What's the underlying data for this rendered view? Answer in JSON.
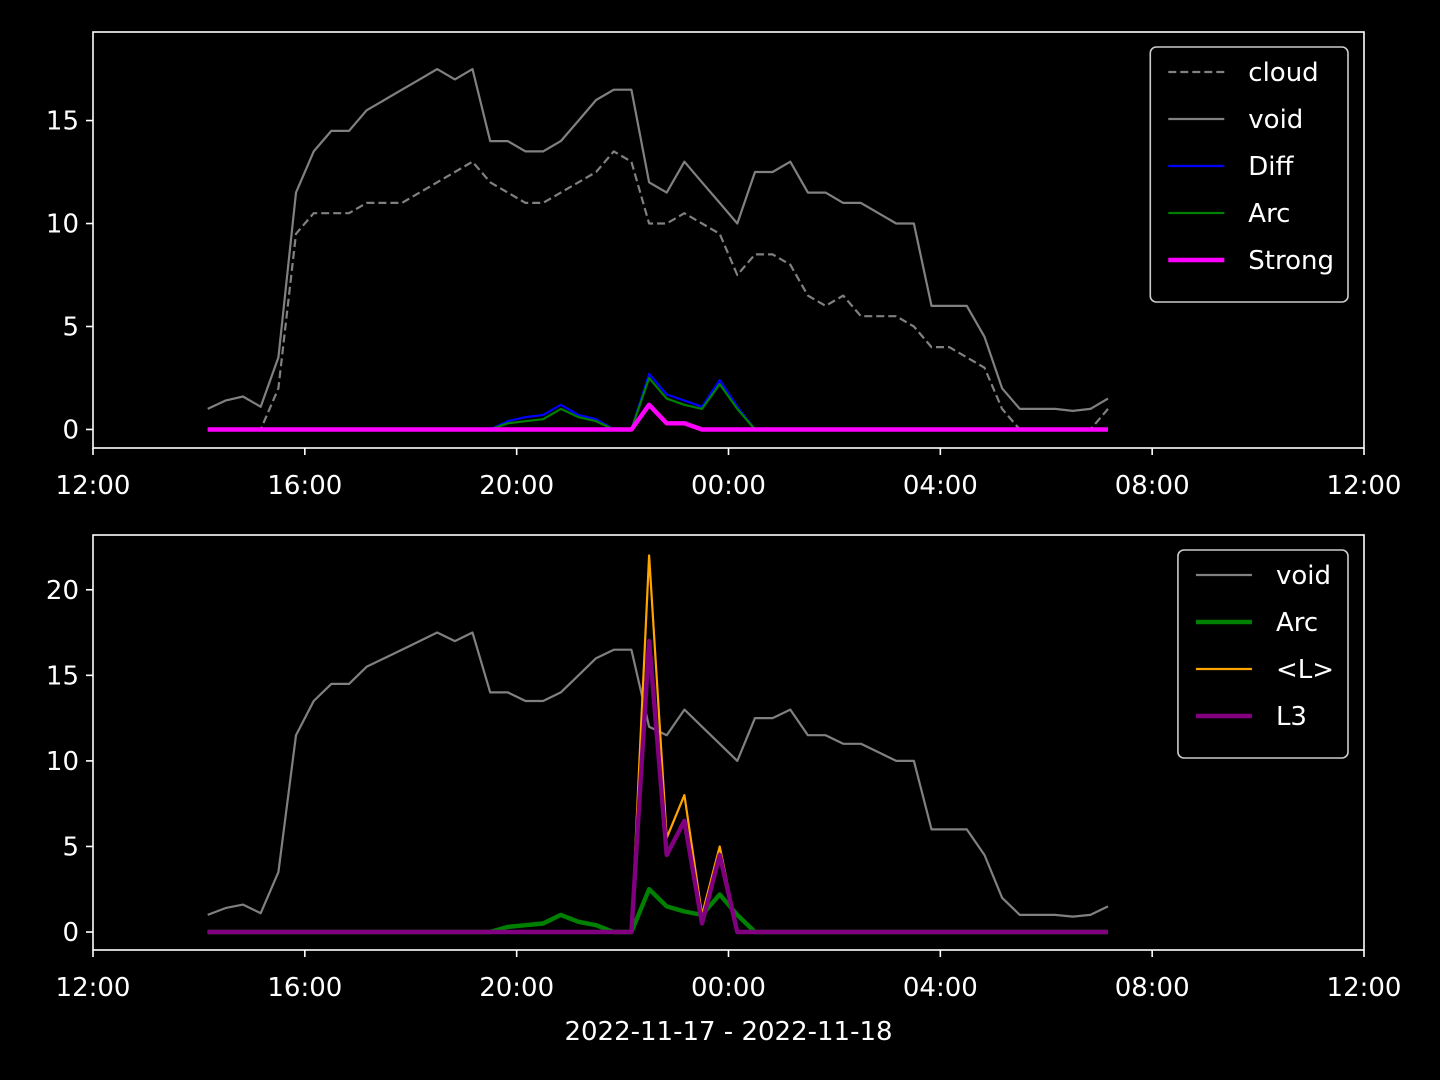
{
  "chart_data": [
    {
      "type": "line",
      "x": [
        "2022-11-17T14:10",
        "2022-11-17T14:30",
        "2022-11-17T14:50",
        "2022-11-17T15:10",
        "2022-11-17T15:30",
        "2022-11-17T15:50",
        "2022-11-17T16:10",
        "2022-11-17T16:30",
        "2022-11-17T16:50",
        "2022-11-17T17:10",
        "2022-11-17T17:30",
        "2022-11-17T17:50",
        "2022-11-17T18:10",
        "2022-11-17T18:30",
        "2022-11-17T18:50",
        "2022-11-17T19:10",
        "2022-11-17T19:30",
        "2022-11-17T19:50",
        "2022-11-17T20:10",
        "2022-11-17T20:30",
        "2022-11-17T20:50",
        "2022-11-17T21:10",
        "2022-11-17T21:30",
        "2022-11-17T21:50",
        "2022-11-17T22:10",
        "2022-11-17T22:30",
        "2022-11-17T22:50",
        "2022-11-17T23:10",
        "2022-11-17T23:30",
        "2022-11-17T23:50",
        "2022-11-18T00:10",
        "2022-11-18T00:30",
        "2022-11-18T00:50",
        "2022-11-18T01:10",
        "2022-11-18T01:30",
        "2022-11-18T01:50",
        "2022-11-18T02:10",
        "2022-11-18T02:30",
        "2022-11-18T02:50",
        "2022-11-18T03:10",
        "2022-11-18T03:30",
        "2022-11-18T03:50",
        "2022-11-18T04:10",
        "2022-11-18T04:30",
        "2022-11-18T04:50",
        "2022-11-18T05:10",
        "2022-11-18T05:30",
        "2022-11-18T05:50",
        "2022-11-18T06:10",
        "2022-11-18T06:30",
        "2022-11-18T06:50",
        "2022-11-18T07:10"
      ],
      "series": [
        {
          "name": "cloud",
          "color": "#808080",
          "linestyle": "dashed",
          "linewidth": 1,
          "values": [
            0,
            0,
            0,
            0,
            2,
            9.5,
            10.5,
            10.5,
            10.5,
            11,
            11,
            11,
            11.5,
            12,
            12.5,
            13,
            12,
            11.5,
            11,
            11,
            11.5,
            12,
            12.5,
            13.5,
            13,
            10,
            10,
            10.5,
            10,
            9.5,
            7.5,
            8.5,
            8.5,
            8,
            6.5,
            6,
            6.5,
            5.5,
            5.5,
            5.5,
            5,
            4,
            4,
            3.5,
            3,
            1,
            0,
            0,
            0,
            0,
            0,
            1.0
          ]
        },
        {
          "name": "void",
          "color": "#808080",
          "linewidth": 1,
          "values": [
            1.0,
            1.4,
            1.6,
            1.1,
            3.5,
            11.5,
            13.5,
            14.5,
            14.5,
            15.5,
            16,
            16.5,
            17,
            17.5,
            17,
            17.5,
            14,
            14,
            13.5,
            13.5,
            14,
            15,
            16,
            16.5,
            16.5,
            12,
            11.5,
            13,
            12,
            11,
            10,
            12.5,
            12.5,
            13,
            11.5,
            11.5,
            11,
            11,
            10.5,
            10,
            10,
            6,
            6,
            6,
            4.5,
            2,
            1.0,
            1.0,
            1.0,
            0.9,
            1.0,
            1.5
          ]
        },
        {
          "name": "Diff",
          "color": "#0000ff",
          "linewidth": 1,
          "values": [
            0,
            0,
            0,
            0,
            0,
            0,
            0,
            0,
            0,
            0,
            0,
            0,
            0,
            0,
            0,
            0,
            0,
            0.4,
            0.6,
            0.7,
            1.2,
            0.7,
            0.5,
            0,
            0,
            2.7,
            1.7,
            1.4,
            1.1,
            2.4,
            1.1,
            0,
            0,
            0,
            0,
            0,
            0,
            0,
            0,
            0,
            0,
            0,
            0,
            0,
            0,
            0,
            0,
            0,
            0,
            0,
            0,
            0
          ]
        },
        {
          "name": "Arc",
          "color": "#008000",
          "linewidth": 1,
          "values": [
            0,
            0,
            0,
            0,
            0,
            0,
            0,
            0,
            0,
            0,
            0,
            0,
            0,
            0,
            0,
            0,
            0,
            0.3,
            0.4,
            0.5,
            1.0,
            0.6,
            0.4,
            0,
            0,
            2.5,
            1.5,
            1.2,
            1.0,
            2.2,
            1.0,
            0,
            0,
            0,
            0,
            0,
            0,
            0,
            0,
            0,
            0,
            0,
            0,
            0,
            0,
            0,
            0,
            0,
            0,
            0,
            0,
            0
          ]
        },
        {
          "name": "Strong",
          "color": "#ff00ff",
          "linewidth": 2,
          "values": [
            0,
            0,
            0,
            0,
            0,
            0,
            0,
            0,
            0,
            0,
            0,
            0,
            0,
            0,
            0,
            0,
            0,
            0,
            0,
            0,
            0,
            0,
            0,
            0,
            0,
            1.2,
            0.3,
            0.3,
            0,
            0,
            0,
            0,
            0,
            0,
            0,
            0,
            0,
            0,
            0,
            0,
            0,
            0,
            0,
            0,
            0,
            0,
            0,
            0,
            0,
            0,
            0,
            0
          ]
        }
      ],
      "xlim": [
        "2022-11-17T12:00",
        "2022-11-18T12:00"
      ],
      "xticks": [
        {
          "value": "2022-11-17T12:00",
          "label": "12:00"
        },
        {
          "value": "2022-11-17T16:00",
          "label": "16:00"
        },
        {
          "value": "2022-11-17T20:00",
          "label": "20:00"
        },
        {
          "value": "2022-11-18T00:00",
          "label": "00:00"
        },
        {
          "value": "2022-11-18T04:00",
          "label": "04:00"
        },
        {
          "value": "2022-11-18T08:00",
          "label": "08:00"
        },
        {
          "value": "2022-11-18T12:00",
          "label": "12:00"
        }
      ],
      "ylim": [
        -0.9,
        19.3
      ],
      "yticks": [
        0,
        5,
        10,
        15
      ],
      "legend": "upper right"
    },
    {
      "type": "line",
      "x": [
        "2022-11-17T14:10",
        "2022-11-17T14:30",
        "2022-11-17T14:50",
        "2022-11-17T15:10",
        "2022-11-17T15:30",
        "2022-11-17T15:50",
        "2022-11-17T16:10",
        "2022-11-17T16:30",
        "2022-11-17T16:50",
        "2022-11-17T17:10",
        "2022-11-17T17:30",
        "2022-11-17T17:50",
        "2022-11-17T18:10",
        "2022-11-17T18:30",
        "2022-11-17T18:50",
        "2022-11-17T19:10",
        "2022-11-17T19:30",
        "2022-11-17T19:50",
        "2022-11-17T20:10",
        "2022-11-17T20:30",
        "2022-11-17T20:50",
        "2022-11-17T21:10",
        "2022-11-17T21:30",
        "2022-11-17T21:50",
        "2022-11-17T22:10",
        "2022-11-17T22:30",
        "2022-11-17T22:50",
        "2022-11-17T23:10",
        "2022-11-17T23:30",
        "2022-11-17T23:50",
        "2022-11-18T00:10",
        "2022-11-18T00:30",
        "2022-11-18T00:50",
        "2022-11-18T01:10",
        "2022-11-18T01:30",
        "2022-11-18T01:50",
        "2022-11-18T02:10",
        "2022-11-18T02:30",
        "2022-11-18T02:50",
        "2022-11-18T03:10",
        "2022-11-18T03:30",
        "2022-11-18T03:50",
        "2022-11-18T04:10",
        "2022-11-18T04:30",
        "2022-11-18T04:50",
        "2022-11-18T05:10",
        "2022-11-18T05:30",
        "2022-11-18T05:50",
        "2022-11-18T06:10",
        "2022-11-18T06:30",
        "2022-11-18T06:50",
        "2022-11-18T07:10"
      ],
      "series": [
        {
          "name": "void",
          "color": "#808080",
          "linewidth": 1,
          "values": [
            1.0,
            1.4,
            1.6,
            1.1,
            3.5,
            11.5,
            13.5,
            14.5,
            14.5,
            15.5,
            16,
            16.5,
            17,
            17.5,
            17,
            17.5,
            14,
            14,
            13.5,
            13.5,
            14,
            15,
            16,
            16.5,
            16.5,
            12,
            11.5,
            13,
            12,
            11,
            10,
            12.5,
            12.5,
            13,
            11.5,
            11.5,
            11,
            11,
            10.5,
            10,
            10,
            6,
            6,
            6,
            4.5,
            2,
            1.0,
            1.0,
            1.0,
            0.9,
            1.0,
            1.5
          ]
        },
        {
          "name": "Arc",
          "color": "#008000",
          "linewidth": 2,
          "values": [
            0,
            0,
            0,
            0,
            0,
            0,
            0,
            0,
            0,
            0,
            0,
            0,
            0,
            0,
            0,
            0,
            0,
            0.3,
            0.4,
            0.5,
            1.0,
            0.6,
            0.4,
            0,
            0,
            2.5,
            1.5,
            1.2,
            1.0,
            2.2,
            1.0,
            0,
            0,
            0,
            0,
            0,
            0,
            0,
            0,
            0,
            0,
            0,
            0,
            0,
            0,
            0,
            0,
            0,
            0,
            0,
            0,
            0
          ]
        },
        {
          "name": "<L>",
          "color": "#ffa500",
          "linewidth": 1,
          "values": [
            0,
            0,
            0,
            0,
            0,
            0,
            0,
            0,
            0,
            0,
            0,
            0,
            0,
            0,
            0,
            0,
            0,
            0,
            0,
            0,
            0,
            0,
            0,
            0,
            0,
            22,
            5.5,
            8,
            1,
            5,
            0,
            0,
            0,
            0,
            0,
            0,
            0,
            0,
            0,
            0,
            0,
            0,
            0,
            0,
            0,
            0,
            0,
            0,
            0,
            0,
            0,
            0
          ]
        },
        {
          "name": "L3",
          "color": "#800080",
          "linewidth": 2,
          "values": [
            0,
            0,
            0,
            0,
            0,
            0,
            0,
            0,
            0,
            0,
            0,
            0,
            0,
            0,
            0,
            0,
            0,
            0,
            0,
            0,
            0,
            0,
            0,
            0,
            0,
            17,
            4.5,
            6.5,
            0.5,
            4.5,
            0,
            0,
            0,
            0,
            0,
            0,
            0,
            0,
            0,
            0,
            0,
            0,
            0,
            0,
            0,
            0,
            0,
            0,
            0,
            0,
            0,
            0
          ]
        }
      ],
      "xlim": [
        "2022-11-17T12:00",
        "2022-11-18T12:00"
      ],
      "xticks": [
        {
          "value": "2022-11-17T12:00",
          "label": "12:00"
        },
        {
          "value": "2022-11-17T16:00",
          "label": "16:00"
        },
        {
          "value": "2022-11-17T20:00",
          "label": "20:00"
        },
        {
          "value": "2022-11-18T00:00",
          "label": "00:00"
        },
        {
          "value": "2022-11-18T04:00",
          "label": "04:00"
        },
        {
          "value": "2022-11-18T08:00",
          "label": "08:00"
        },
        {
          "value": "2022-11-18T12:00",
          "label": "12:00"
        }
      ],
      "xlabel": "2022-11-17 - 2022-11-18",
      "ylim": [
        -1.05,
        23.2
      ],
      "yticks": [
        0,
        5,
        10,
        15,
        20
      ],
      "legend": "upper right"
    }
  ]
}
